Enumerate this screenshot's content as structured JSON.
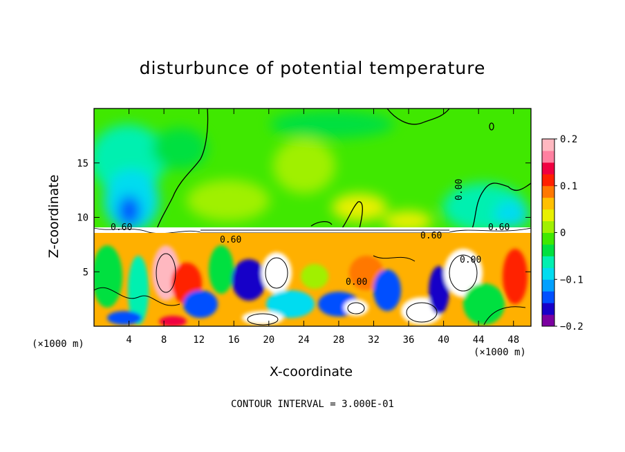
{
  "chart_data": {
    "type": "heatmap",
    "title": "disturbunce of potential temperature",
    "xlabel": "X-coordinate",
    "ylabel": "Z-coordinate",
    "x_unit_label": "(×1000 m)",
    "xlim": [
      0,
      50
    ],
    "ylim": [
      0,
      20
    ],
    "x_ticks": [
      4,
      8,
      12,
      16,
      20,
      24,
      28,
      32,
      36,
      40,
      44,
      48
    ],
    "y_ticks": [
      5,
      10,
      15
    ],
    "colorbar": {
      "range": [
        -0.2,
        0.2
      ],
      "ticks": [
        0.2,
        0.1,
        0,
        -0.1,
        -0.2
      ],
      "tick_labels": [
        "0.2",
        "0.1",
        "0",
        "−0.1",
        "−0.2"
      ],
      "colors": [
        "#7b00a0",
        "#1800c8",
        "#0050ff",
        "#00a0ff",
        "#00dcf0",
        "#00f0b0",
        "#00e040",
        "#40e800",
        "#a0f000",
        "#e8f000",
        "#ffc000",
        "#ff7800",
        "#ff2000",
        "#f00040",
        "#ff80a0",
        "#ffb8c0"
      ]
    },
    "contour_labels": [
      "0.60",
      "0.60",
      "0.60",
      "0.60",
      "0.00",
      "0.00",
      "0.00"
    ],
    "contour_interval_text": "CONTOUR INTERVAL = 3.000E-01",
    "approx_regions": {
      "upper_layer": "near 0 (green) above z≈8",
      "lower_layer": "strong mixed anomalies −0.2 to 0.2 below z≈8",
      "cold_column_x": 4.5,
      "cold_column_z": [
        8,
        15
      ]
    }
  }
}
